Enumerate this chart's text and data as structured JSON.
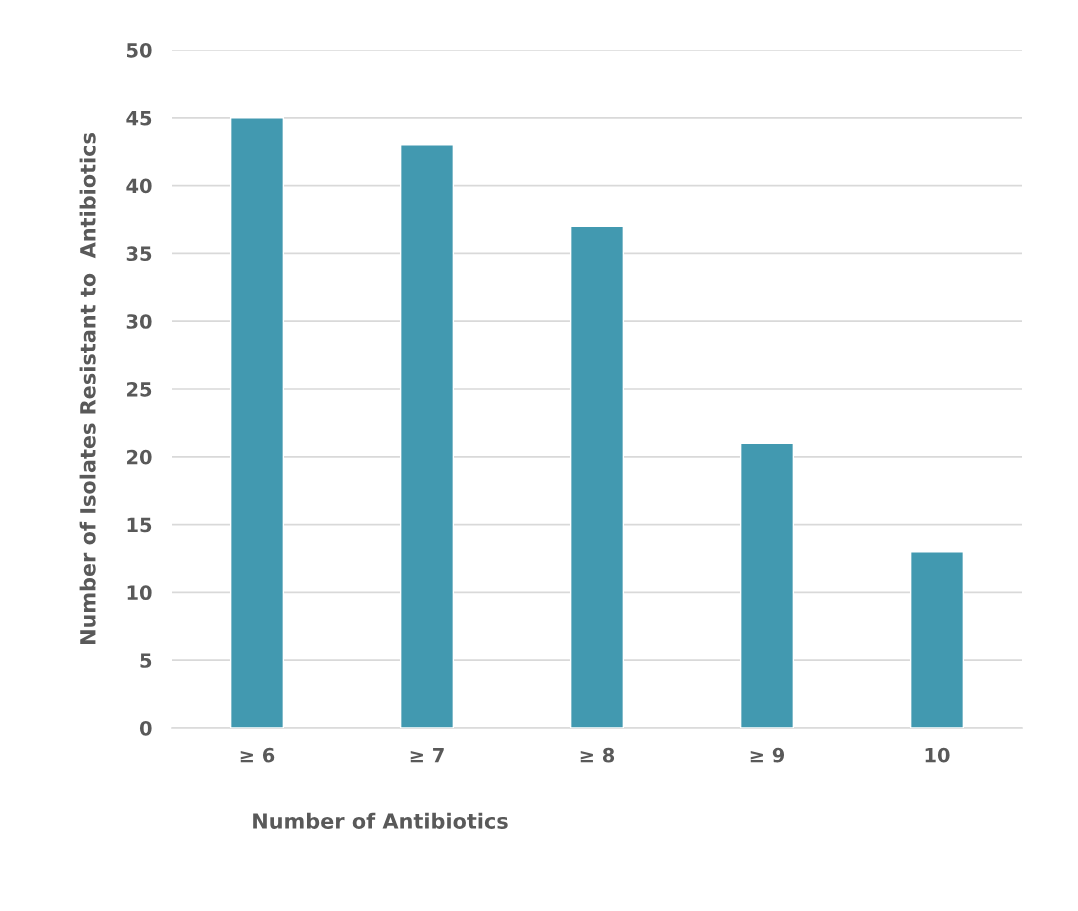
{
  "chart_data": {
    "type": "bar",
    "xlabel": "Number of Antibiotics",
    "ylabel": "Number of Isolates Resistant to  Antibiotics",
    "categories": [
      "≥ 6",
      "≥ 7",
      "≥ 8",
      "≥ 9",
      "10"
    ],
    "values": [
      45,
      43,
      37,
      21,
      13
    ],
    "color": "#4299b0",
    "ylim": [
      0,
      50
    ],
    "yticks": [
      0,
      5,
      10,
      15,
      20,
      25,
      30,
      35,
      40,
      45,
      50
    ],
    "grid": "y",
    "legend": false
  }
}
